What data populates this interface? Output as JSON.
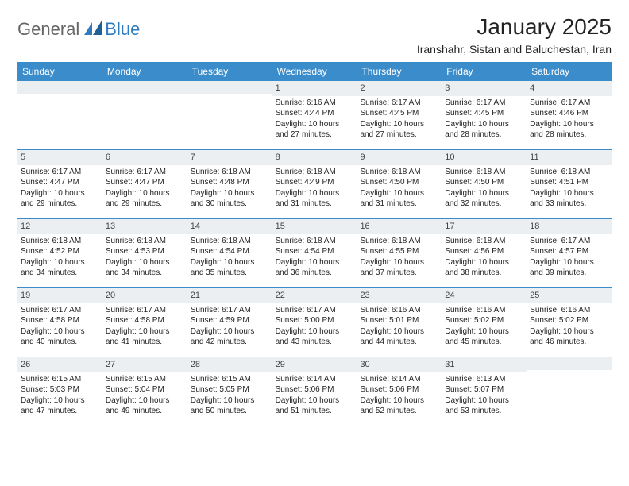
{
  "logo": {
    "text_a": "General",
    "text_b": "Blue",
    "mark_color": "#2f7bbf"
  },
  "title": "January 2025",
  "location": "Iranshahr, Sistan and Baluchestan, Iran",
  "colors": {
    "header_bg": "#3b8ccb",
    "header_text": "#ffffff",
    "daynum_bg": "#eceff1",
    "rule": "#3b8ccb",
    "body_text": "#222222"
  },
  "weekdays": [
    "Sunday",
    "Monday",
    "Tuesday",
    "Wednesday",
    "Thursday",
    "Friday",
    "Saturday"
  ],
  "weeks": [
    [
      {
        "n": "",
        "sunrise": "",
        "sunset": "",
        "daylight": ""
      },
      {
        "n": "",
        "sunrise": "",
        "sunset": "",
        "daylight": ""
      },
      {
        "n": "",
        "sunrise": "",
        "sunset": "",
        "daylight": ""
      },
      {
        "n": "1",
        "sunrise": "Sunrise: 6:16 AM",
        "sunset": "Sunset: 4:44 PM",
        "daylight": "Daylight: 10 hours and 27 minutes."
      },
      {
        "n": "2",
        "sunrise": "Sunrise: 6:17 AM",
        "sunset": "Sunset: 4:45 PM",
        "daylight": "Daylight: 10 hours and 27 minutes."
      },
      {
        "n": "3",
        "sunrise": "Sunrise: 6:17 AM",
        "sunset": "Sunset: 4:45 PM",
        "daylight": "Daylight: 10 hours and 28 minutes."
      },
      {
        "n": "4",
        "sunrise": "Sunrise: 6:17 AM",
        "sunset": "Sunset: 4:46 PM",
        "daylight": "Daylight: 10 hours and 28 minutes."
      }
    ],
    [
      {
        "n": "5",
        "sunrise": "Sunrise: 6:17 AM",
        "sunset": "Sunset: 4:47 PM",
        "daylight": "Daylight: 10 hours and 29 minutes."
      },
      {
        "n": "6",
        "sunrise": "Sunrise: 6:17 AM",
        "sunset": "Sunset: 4:47 PM",
        "daylight": "Daylight: 10 hours and 29 minutes."
      },
      {
        "n": "7",
        "sunrise": "Sunrise: 6:18 AM",
        "sunset": "Sunset: 4:48 PM",
        "daylight": "Daylight: 10 hours and 30 minutes."
      },
      {
        "n": "8",
        "sunrise": "Sunrise: 6:18 AM",
        "sunset": "Sunset: 4:49 PM",
        "daylight": "Daylight: 10 hours and 31 minutes."
      },
      {
        "n": "9",
        "sunrise": "Sunrise: 6:18 AM",
        "sunset": "Sunset: 4:50 PM",
        "daylight": "Daylight: 10 hours and 31 minutes."
      },
      {
        "n": "10",
        "sunrise": "Sunrise: 6:18 AM",
        "sunset": "Sunset: 4:50 PM",
        "daylight": "Daylight: 10 hours and 32 minutes."
      },
      {
        "n": "11",
        "sunrise": "Sunrise: 6:18 AM",
        "sunset": "Sunset: 4:51 PM",
        "daylight": "Daylight: 10 hours and 33 minutes."
      }
    ],
    [
      {
        "n": "12",
        "sunrise": "Sunrise: 6:18 AM",
        "sunset": "Sunset: 4:52 PM",
        "daylight": "Daylight: 10 hours and 34 minutes."
      },
      {
        "n": "13",
        "sunrise": "Sunrise: 6:18 AM",
        "sunset": "Sunset: 4:53 PM",
        "daylight": "Daylight: 10 hours and 34 minutes."
      },
      {
        "n": "14",
        "sunrise": "Sunrise: 6:18 AM",
        "sunset": "Sunset: 4:54 PM",
        "daylight": "Daylight: 10 hours and 35 minutes."
      },
      {
        "n": "15",
        "sunrise": "Sunrise: 6:18 AM",
        "sunset": "Sunset: 4:54 PM",
        "daylight": "Daylight: 10 hours and 36 minutes."
      },
      {
        "n": "16",
        "sunrise": "Sunrise: 6:18 AM",
        "sunset": "Sunset: 4:55 PM",
        "daylight": "Daylight: 10 hours and 37 minutes."
      },
      {
        "n": "17",
        "sunrise": "Sunrise: 6:18 AM",
        "sunset": "Sunset: 4:56 PM",
        "daylight": "Daylight: 10 hours and 38 minutes."
      },
      {
        "n": "18",
        "sunrise": "Sunrise: 6:17 AM",
        "sunset": "Sunset: 4:57 PM",
        "daylight": "Daylight: 10 hours and 39 minutes."
      }
    ],
    [
      {
        "n": "19",
        "sunrise": "Sunrise: 6:17 AM",
        "sunset": "Sunset: 4:58 PM",
        "daylight": "Daylight: 10 hours and 40 minutes."
      },
      {
        "n": "20",
        "sunrise": "Sunrise: 6:17 AM",
        "sunset": "Sunset: 4:58 PM",
        "daylight": "Daylight: 10 hours and 41 minutes."
      },
      {
        "n": "21",
        "sunrise": "Sunrise: 6:17 AM",
        "sunset": "Sunset: 4:59 PM",
        "daylight": "Daylight: 10 hours and 42 minutes."
      },
      {
        "n": "22",
        "sunrise": "Sunrise: 6:17 AM",
        "sunset": "Sunset: 5:00 PM",
        "daylight": "Daylight: 10 hours and 43 minutes."
      },
      {
        "n": "23",
        "sunrise": "Sunrise: 6:16 AM",
        "sunset": "Sunset: 5:01 PM",
        "daylight": "Daylight: 10 hours and 44 minutes."
      },
      {
        "n": "24",
        "sunrise": "Sunrise: 6:16 AM",
        "sunset": "Sunset: 5:02 PM",
        "daylight": "Daylight: 10 hours and 45 minutes."
      },
      {
        "n": "25",
        "sunrise": "Sunrise: 6:16 AM",
        "sunset": "Sunset: 5:02 PM",
        "daylight": "Daylight: 10 hours and 46 minutes."
      }
    ],
    [
      {
        "n": "26",
        "sunrise": "Sunrise: 6:15 AM",
        "sunset": "Sunset: 5:03 PM",
        "daylight": "Daylight: 10 hours and 47 minutes."
      },
      {
        "n": "27",
        "sunrise": "Sunrise: 6:15 AM",
        "sunset": "Sunset: 5:04 PM",
        "daylight": "Daylight: 10 hours and 49 minutes."
      },
      {
        "n": "28",
        "sunrise": "Sunrise: 6:15 AM",
        "sunset": "Sunset: 5:05 PM",
        "daylight": "Daylight: 10 hours and 50 minutes."
      },
      {
        "n": "29",
        "sunrise": "Sunrise: 6:14 AM",
        "sunset": "Sunset: 5:06 PM",
        "daylight": "Daylight: 10 hours and 51 minutes."
      },
      {
        "n": "30",
        "sunrise": "Sunrise: 6:14 AM",
        "sunset": "Sunset: 5:06 PM",
        "daylight": "Daylight: 10 hours and 52 minutes."
      },
      {
        "n": "31",
        "sunrise": "Sunrise: 6:13 AM",
        "sunset": "Sunset: 5:07 PM",
        "daylight": "Daylight: 10 hours and 53 minutes."
      },
      {
        "n": "",
        "sunrise": "",
        "sunset": "",
        "daylight": ""
      }
    ]
  ]
}
